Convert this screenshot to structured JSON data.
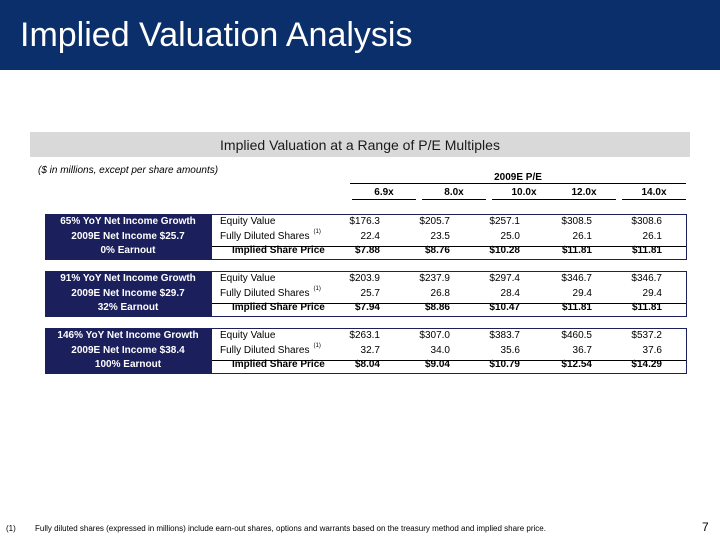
{
  "title": "Implied Valuation Analysis",
  "subtitle": "Implied Valuation at a Range of P/E Multiples",
  "units_note": "($ in millions, except per share amounts)",
  "pe_header": "2009E P/E",
  "columns": [
    "6.9x",
    "8.0x",
    "10.0x",
    "12.0x",
    "14.0x"
  ],
  "metrics": [
    "Equity Value",
    "Fully Diluted Shares",
    "Implied Share Price"
  ],
  "footnote_marker": "(1)",
  "scenarios": [
    {
      "lines": [
        "65% YoY Net Income Growth",
        "2009E Net Income $25.7",
        "0%  Earnout"
      ],
      "equity_value": [
        "$176.3",
        "$205.7",
        "$257.1",
        "$308.5",
        "$308.6"
      ],
      "shares": [
        "22.4",
        "23.5",
        "25.0",
        "26.1",
        "26.1"
      ],
      "price": [
        "$7.88",
        "$8.76",
        "$10.28",
        "$11.81",
        "$11.81"
      ]
    },
    {
      "lines": [
        "91% YoY Net Income Growth",
        "2009E Net Income $29.7",
        "32%  Earnout"
      ],
      "equity_value": [
        "$203.9",
        "$237.9",
        "$297.4",
        "$346.7",
        "$346.7"
      ],
      "shares": [
        "25.7",
        "26.8",
        "28.4",
        "29.4",
        "29.4"
      ],
      "price": [
        "$7.94",
        "$8.86",
        "$10.47",
        "$11.81",
        "$11.81"
      ]
    },
    {
      "lines": [
        "146% YoY Net Income Growth",
        "2009E Net Income $38.4",
        "100%  Earnout"
      ],
      "equity_value": [
        "$263.1",
        "$307.0",
        "$383.7",
        "$460.5",
        "$537.2"
      ],
      "shares": [
        "32.7",
        "34.0",
        "35.6",
        "36.7",
        "37.6"
      ],
      "price": [
        "$8.04",
        "$9.04",
        "$10.79",
        "$12.54",
        "$14.29"
      ]
    }
  ],
  "footnote": {
    "marker": "(1)",
    "text": "Fully diluted shares (expressed in millions) include earn-out shares, options and warrants based on the treasury method and implied share price."
  },
  "page_number": "7"
}
